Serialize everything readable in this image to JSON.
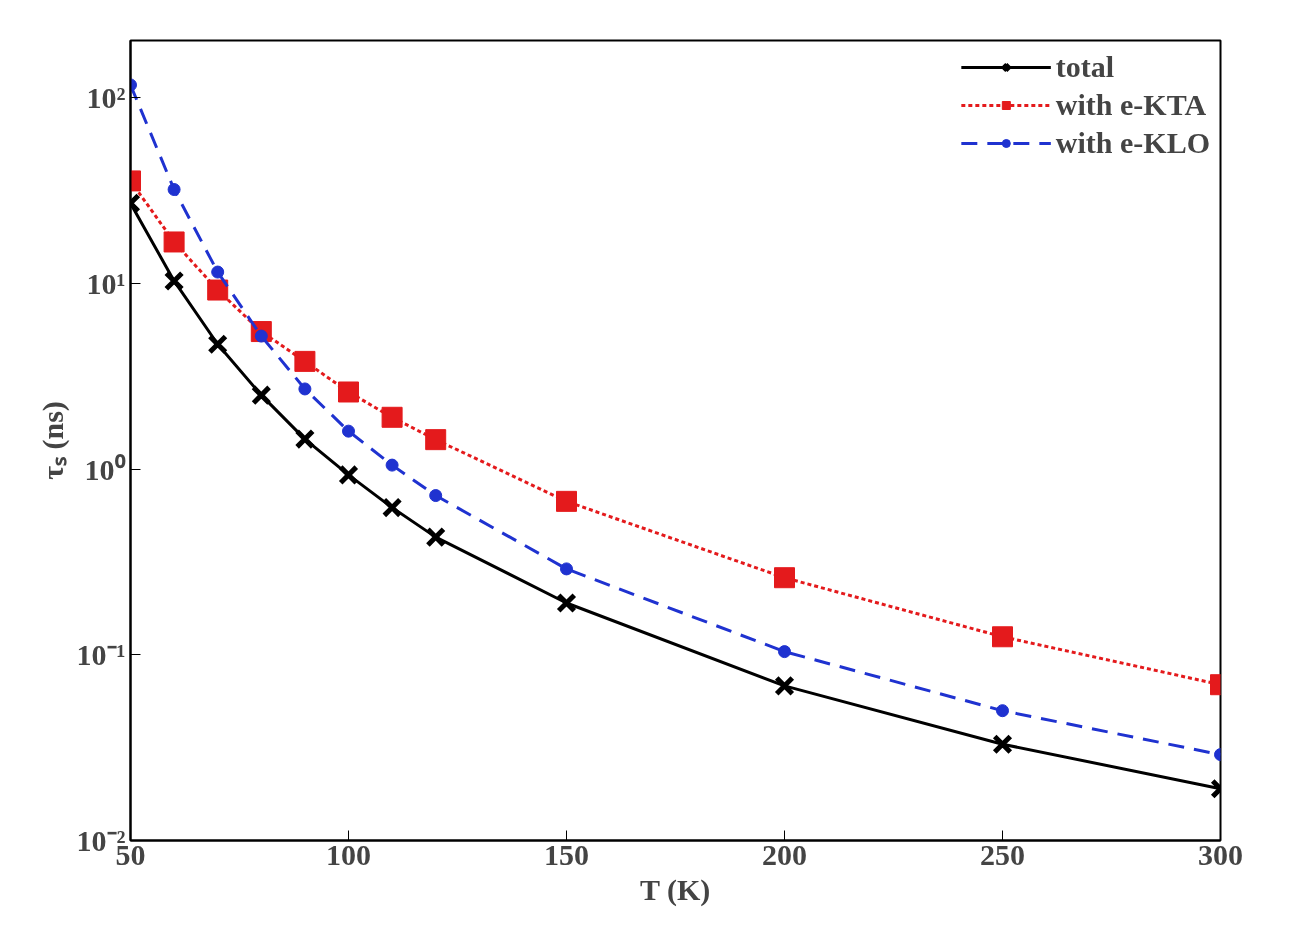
{
  "chart_data": {
    "type": "line",
    "xlabel": "T (K)",
    "ylabel": "τₛ (ns)",
    "log": "y",
    "grid": false,
    "legend": "top right",
    "x": [
      50,
      60,
      70,
      80,
      90,
      100,
      110,
      120,
      150,
      200,
      250,
      300
    ],
    "xlim": [
      50,
      300
    ],
    "xticks": [
      50,
      100,
      150,
      200,
      250,
      300
    ],
    "ylim": [
      0.01,
      203
    ],
    "yticks": [
      {
        "value": 0.01,
        "label": "10⁻²"
      },
      {
        "value": 0.1,
        "label": "10⁻¹"
      },
      {
        "value": 1,
        "label": "10⁰"
      },
      {
        "value": 10,
        "label": "10¹"
      },
      {
        "value": 100,
        "label": "10²"
      }
    ],
    "series": [
      {
        "name": "total",
        "color": "#000000",
        "marker": "cross",
        "line_style": "solid",
        "values": [
          27,
          10.3,
          4.7,
          2.5,
          1.45,
          0.93,
          0.62,
          0.43,
          0.19,
          0.068,
          0.033,
          0.019
        ]
      },
      {
        "name": "with e-KTA",
        "color": "#e41a1c",
        "marker": "square",
        "line_style": "dotted",
        "values": [
          35.6,
          16.7,
          9.2,
          5.5,
          3.8,
          2.6,
          1.9,
          1.44,
          0.67,
          0.26,
          0.125,
          0.069
        ]
      },
      {
        "name": "with e-KLO",
        "color": "#1f32d0",
        "marker": "circle",
        "line_style": "dashed",
        "values": [
          117,
          32,
          11.5,
          5.2,
          2.7,
          1.6,
          1.05,
          0.72,
          0.29,
          0.104,
          0.05,
          0.029
        ]
      }
    ]
  }
}
